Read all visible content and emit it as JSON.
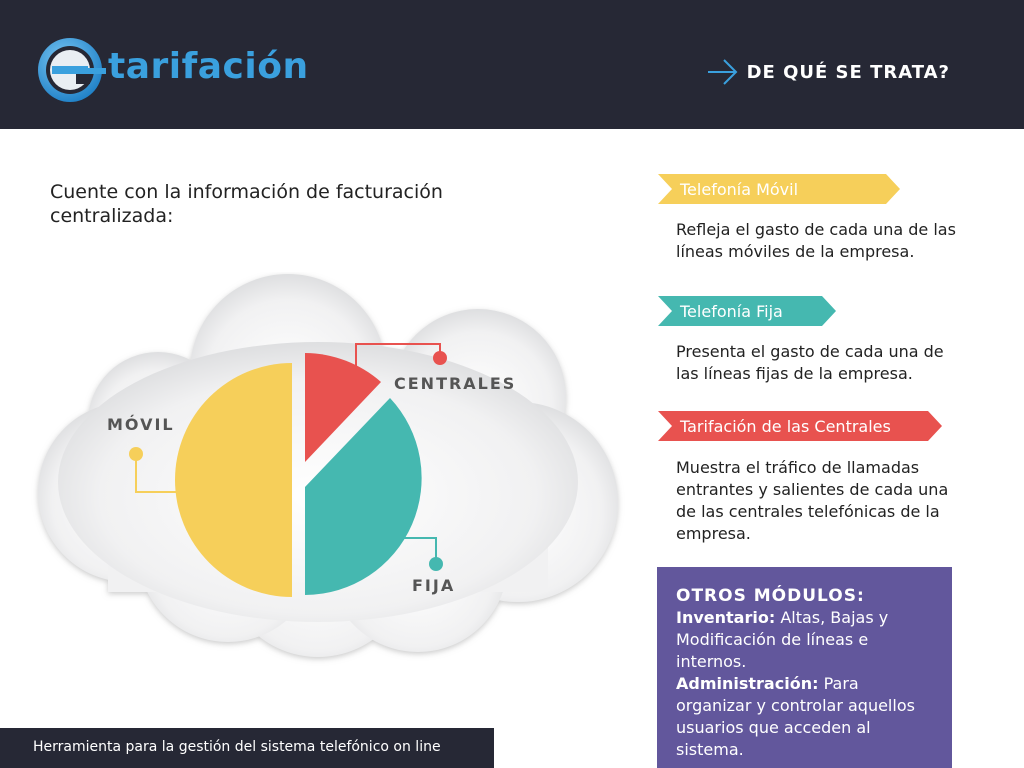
{
  "header": {
    "logo_text": "tarifación",
    "logo_letter": "e",
    "nav_label": "DE QUÉ SE TRATA?"
  },
  "intro": {
    "text": "Cuente con la información de facturación centralizada:"
  },
  "chart": {
    "labels": {
      "movil": "MÓVIL",
      "centrales": "CENTRALES",
      "fija": "FIJA"
    },
    "colors": {
      "movil": "#f6cf5a",
      "centrales": "#e8524f",
      "fija": "#45b8b0"
    }
  },
  "sections": [
    {
      "title": "Telefonía Móvil",
      "description": "Refleja el gasto de cada una de las líneas móviles de la empresa."
    },
    {
      "title": "Telefonía Fija",
      "description": "Presenta el gasto de cada una de las líneas fijas de la empresa."
    },
    {
      "title": "Tarifación de las Centrales",
      "description": "Muestra el tráfico de llamadas entrantes y salientes de cada una de las centrales telefónicas de la empresa."
    }
  ],
  "modules": {
    "title": "OTROS MÓDULOS:",
    "items": [
      {
        "name": "Inventario:",
        "text": "Altas, Bajas y Modificación de líneas e internos."
      },
      {
        "name": "Administración:",
        "text": "Para organizar y controlar aquellos usuarios que acceden al sistema."
      }
    ]
  },
  "footer": {
    "text": "Herramienta para la gestión del sistema telefónico on line"
  },
  "colors": {
    "header_bg": "#262835",
    "brand_blue": "#3aa0de",
    "modules_bg": "#62579c"
  }
}
